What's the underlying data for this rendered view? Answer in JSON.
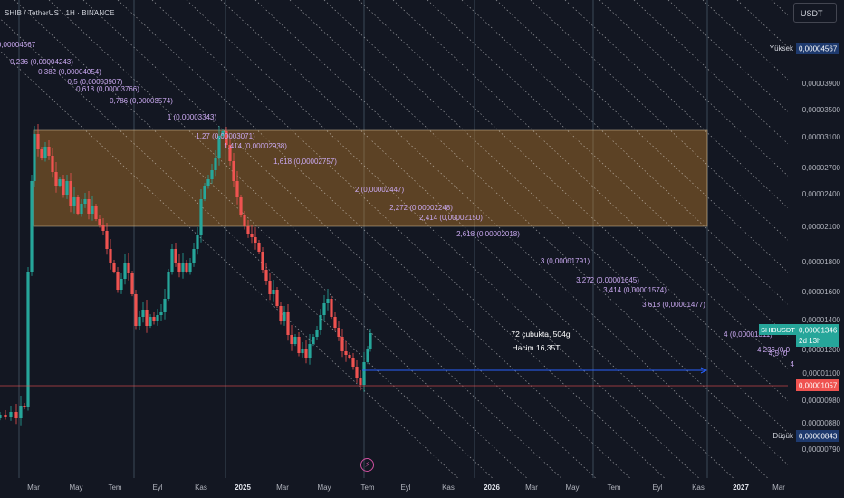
{
  "header": {
    "title": "SHIB / TetherUS · 1H · BINANCE",
    "currency": "USDT"
  },
  "colors": {
    "background": "#131722",
    "up": "#26a69a",
    "down": "#ef5350",
    "band_fill": "#d48a2a",
    "fib_label": "#c9a8f0",
    "grid_line": "#5b7ea8"
  },
  "chart_data": {
    "type": "candlestick",
    "symbol": "SHIBUSDT",
    "timeframe": "1H",
    "x_ticks": [
      "Mar",
      "May",
      "Tem",
      "Eyl",
      "Kas",
      "2025",
      "Mar",
      "May",
      "Tem",
      "Eyl",
      "Kas",
      "2026",
      "Mar",
      "May",
      "Tem",
      "Eyl",
      "Kas",
      "2027",
      "Mar"
    ],
    "y_ticks": [
      "0,00003900",
      "0,00003500",
      "0,00003100",
      "0,00002700",
      "0,00002400",
      "0,00002100",
      "0,00001800",
      "0,00001600",
      "0,00001400",
      "0,00001200",
      "0,00001100",
      "0,00000980",
      "0,00000880",
      "0,00000790"
    ],
    "y_scale": "log",
    "price_badges": [
      {
        "label": "Yüksek",
        "value": "0,00004567"
      },
      {
        "label": "SHIBUSDT",
        "value": "0,00001346",
        "sub": "2d 13h"
      },
      {
        "label": "",
        "value": "0,00001057"
      },
      {
        "label": "Düşük",
        "value": "0,00000843"
      }
    ],
    "fib_levels": [
      {
        "text": "0,00004567"
      },
      {
        "text": "0,236 (0,00004243)"
      },
      {
        "text": "0,382 (0,00004054)"
      },
      {
        "text": "0,5 (0,00003907)"
      },
      {
        "text": "0,618 (0,00003766)"
      },
      {
        "text": "0,786 (0,00003574)"
      },
      {
        "text": "1 (0,00003343)"
      },
      {
        "text": "1,27 (0,00003071)"
      },
      {
        "text": "1,414 (0,00002938)"
      },
      {
        "text": "1,618 (0,00002757)"
      },
      {
        "text": "2 (0,00002447)"
      },
      {
        "text": "2,272 (0,00002248)"
      },
      {
        "text": "2,414 (0,00002150)"
      },
      {
        "text": "2,618 (0,00002018)"
      },
      {
        "text": "3 (0,00001791)"
      },
      {
        "text": "3,272 (0,00001645)"
      },
      {
        "text": "3,414 (0,00001574)"
      },
      {
        "text": "3,618 (0,00001477)"
      },
      {
        "text": "4 (0,00001311)"
      },
      {
        "text": "4,236 (0,0"
      },
      {
        "text": "4,5 (0"
      },
      {
        "text": "4"
      }
    ],
    "range_measure": {
      "line1": "72 çubukta, 504g",
      "line2": "Hacim 16,35T"
    },
    "band": {
      "top": "0,00003100",
      "bottom": "0,00002100"
    }
  }
}
